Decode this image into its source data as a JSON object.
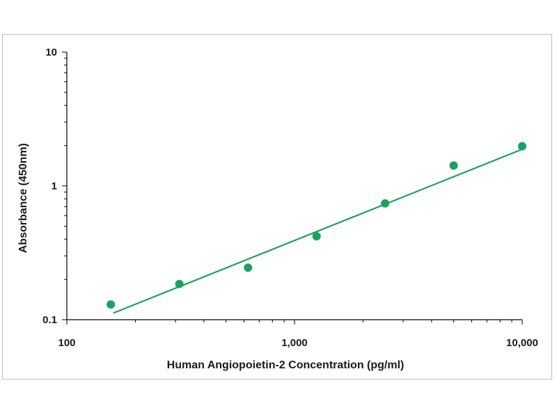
{
  "colors": {
    "series": "#1aa162",
    "axis": "#000000",
    "frame": "#bdbdbd"
  },
  "chart_data": {
    "type": "scatter",
    "title": "",
    "xlabel": "Human Angiopoietin-2 Concentration (pg/ml)",
    "ylabel": "Absorbance (450nm)",
    "xscale": "log",
    "yscale": "log",
    "xlim": [
      100,
      10000
    ],
    "ylim": [
      0.1,
      10
    ],
    "x_tick_labels": [
      "100",
      "1,000",
      "10,000"
    ],
    "x_tick_values": [
      100,
      1000,
      10000
    ],
    "y_tick_labels": [
      "0.1",
      "1",
      "10"
    ],
    "y_tick_values": [
      0.1,
      1,
      10
    ],
    "grid": false,
    "legend": "none",
    "series": [
      {
        "x": [
          156,
          312,
          625,
          1250,
          2500,
          5000,
          10000
        ],
        "y": [
          0.13,
          0.185,
          0.245,
          0.42,
          0.74,
          1.42,
          1.98
        ]
      }
    ],
    "fit_line": {
      "x": [
        160,
        10000
      ],
      "y": [
        0.112,
        1.88
      ]
    }
  }
}
